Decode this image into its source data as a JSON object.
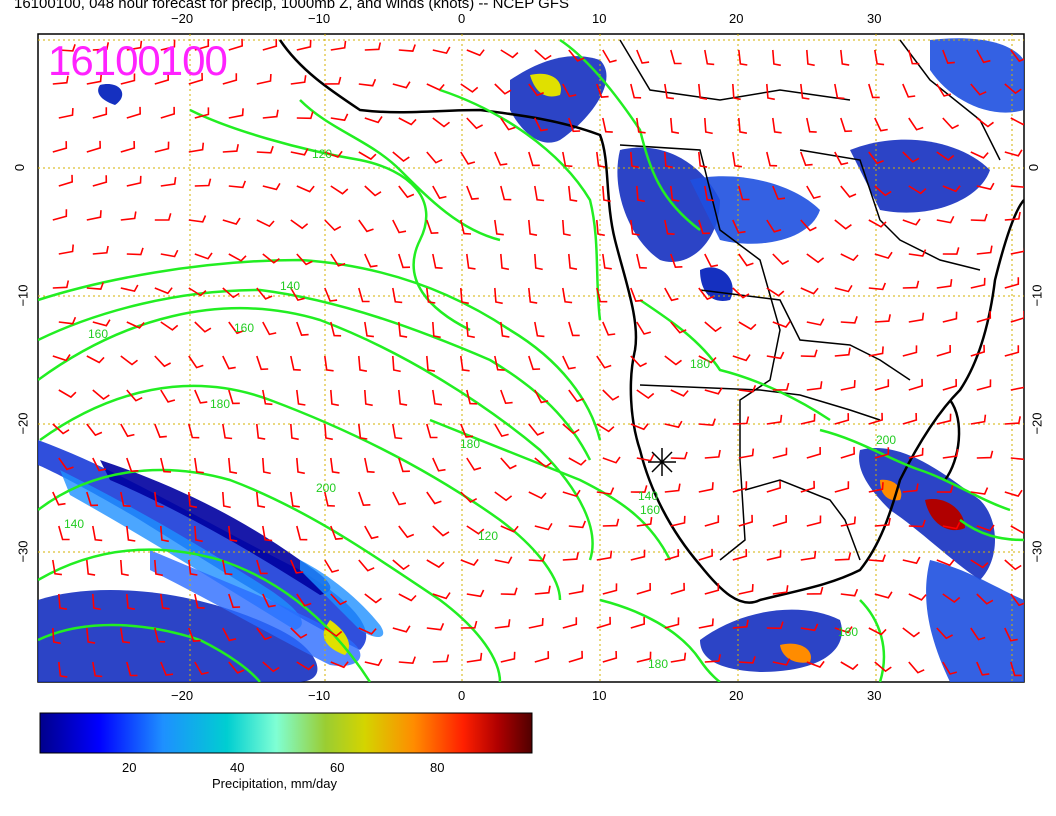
{
  "title": "16100100, 048 hour forecast for precip, 1000mb Z, and winds (knots) -- NCEP GFS",
  "stamp": "16100100",
  "axes": {
    "top_lon_labels": [
      "−20",
      "−10",
      "0",
      "10",
      "20",
      "30"
    ],
    "bottom_lon_labels": [
      "−20",
      "−10",
      "0",
      "10",
      "20",
      "30"
    ],
    "left_lat_labels": [
      "0",
      "−10",
      "−20",
      "−30"
    ],
    "right_lat_labels": [
      "0",
      "−10",
      "−20",
      "−30"
    ]
  },
  "contour_labels": [
    "120",
    "140",
    "160",
    "180",
    "200",
    "160",
    "140",
    "180",
    "120",
    "140",
    "160",
    "180",
    "200",
    "160",
    "180"
  ],
  "colorbar": {
    "ticks": [
      "20",
      "40",
      "60",
      "80"
    ],
    "label": "Precipitation, mm/day",
    "colors": [
      "#00008b",
      "#0000ff",
      "#1e90ff",
      "#00ced1",
      "#7fffd4",
      "#9acd32",
      "#d4d400",
      "#ff8c00",
      "#ff2000",
      "#b00000",
      "#500000"
    ]
  },
  "colors": {
    "wind_barbs": "#ff0000",
    "contours": "#22ee22",
    "grid": "#d4b000",
    "coast": "#000000"
  }
}
